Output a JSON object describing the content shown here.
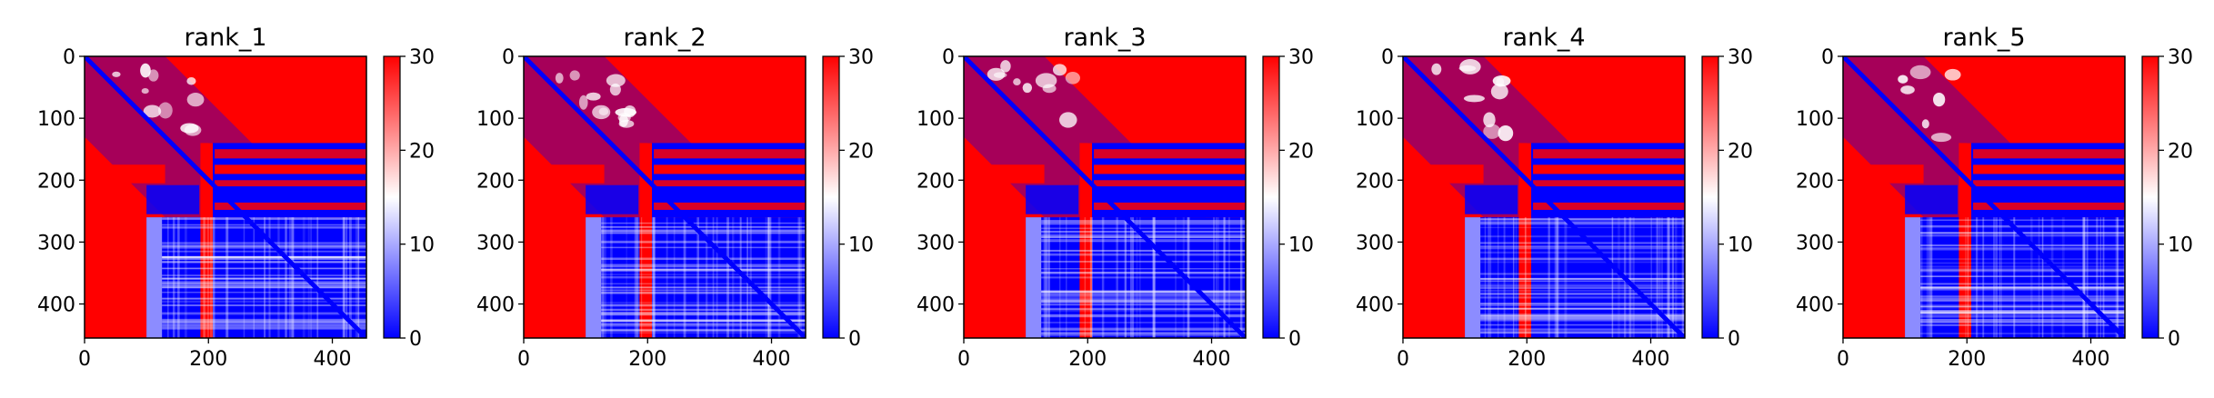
{
  "figure": {
    "background": "#ffffff"
  },
  "colormap": {
    "name": "bwr",
    "low": "#0000ff",
    "mid": "#ffffff",
    "high": "#ff0000",
    "vmin": 0,
    "vmax": 30
  },
  "chart_data": [
    {
      "type": "heatmap",
      "title": "rank_1",
      "x_ticks": [
        0,
        200,
        400
      ],
      "y_ticks": [
        0,
        100,
        200,
        300,
        400
      ],
      "x_range": [
        0,
        455
      ],
      "y_range": [
        0,
        455
      ],
      "colorbar": {
        "ticks": [
          0,
          10,
          20,
          30
        ],
        "range": [
          0,
          30
        ]
      }
    },
    {
      "type": "heatmap",
      "title": "rank_2",
      "x_ticks": [
        0,
        200,
        400
      ],
      "y_ticks": [
        0,
        100,
        200,
        300,
        400
      ],
      "x_range": [
        0,
        455
      ],
      "y_range": [
        0,
        455
      ],
      "colorbar": {
        "ticks": [
          0,
          10,
          20,
          30
        ],
        "range": [
          0,
          30
        ]
      }
    },
    {
      "type": "heatmap",
      "title": "rank_3",
      "x_ticks": [
        0,
        200,
        400
      ],
      "y_ticks": [
        0,
        100,
        200,
        300,
        400
      ],
      "x_range": [
        0,
        455
      ],
      "y_range": [
        0,
        455
      ],
      "colorbar": {
        "ticks": [
          0,
          10,
          20,
          30
        ],
        "range": [
          0,
          30
        ]
      }
    },
    {
      "type": "heatmap",
      "title": "rank_4",
      "x_ticks": [
        0,
        200,
        400
      ],
      "y_ticks": [
        0,
        100,
        200,
        300,
        400
      ],
      "x_range": [
        0,
        455
      ],
      "y_range": [
        0,
        455
      ],
      "colorbar": {
        "ticks": [
          0,
          10,
          20,
          30
        ],
        "range": [
          0,
          30
        ]
      }
    },
    {
      "type": "heatmap",
      "title": "rank_5",
      "x_ticks": [
        0,
        200,
        400
      ],
      "y_ticks": [
        0,
        100,
        200,
        300,
        400
      ],
      "x_range": [
        0,
        455
      ],
      "y_range": [
        0,
        455
      ],
      "colorbar": {
        "ticks": [
          0,
          10,
          20,
          30
        ],
        "range": [
          0,
          30
        ]
      }
    }
  ]
}
